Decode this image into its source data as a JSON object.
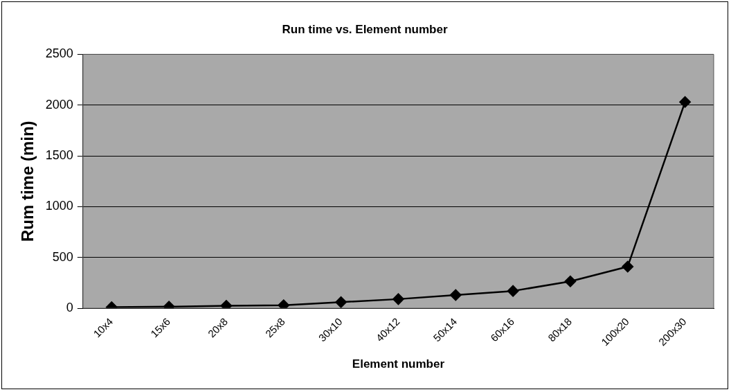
{
  "chart_data": {
    "type": "line",
    "title": "Run time vs. Element number",
    "xlabel": "Element number",
    "ylabel": "Rum time (min)",
    "categories": [
      "10x4",
      "15x6",
      "20x8",
      "25x8",
      "30x10",
      "40x12",
      "50x14",
      "60x16",
      "80x18",
      "100x20",
      "200x30"
    ],
    "series": [
      {
        "color": "#000000",
        "values": [
          10,
          15,
          25,
          30,
          60,
          90,
          130,
          170,
          265,
          410,
          2030
        ]
      }
    ],
    "ylim": [
      0,
      2500
    ],
    "yticks": [
      0,
      500,
      1000,
      1500,
      2000,
      2500
    ],
    "grid": "y",
    "legend": false,
    "marker": "diamond",
    "line_style": "solid"
  }
}
